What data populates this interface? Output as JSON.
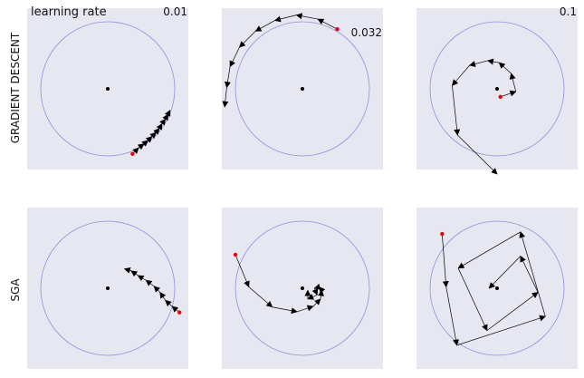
{
  "header": {
    "title": "learning rate"
  },
  "learning_rates": [
    "0.01",
    "0.032",
    "0.1"
  ],
  "row_labels": [
    "GRADIENT DESCENT",
    "SGA"
  ],
  "colors": {
    "panel_bg": "#e7e7f1",
    "circle": "#8f8fe0",
    "arrow": "#000000",
    "start_point": "#e8000b",
    "center": "#000000"
  },
  "panels": [
    {
      "id": "gd-0.01",
      "row": "GRADIENT DESCENT",
      "learning_rate": "0.01",
      "points": [
        [
          0.37,
          -0.97
        ],
        [
          0.46,
          -0.88
        ],
        [
          0.54,
          -0.82
        ],
        [
          0.6,
          -0.77
        ],
        [
          0.66,
          -0.71
        ],
        [
          0.72,
          -0.65
        ],
        [
          0.77,
          -0.59
        ],
        [
          0.81,
          -0.52
        ],
        [
          0.86,
          -0.45
        ],
        [
          0.9,
          -0.38
        ],
        [
          0.93,
          -0.32
        ]
      ]
    },
    {
      "id": "gd-0.032",
      "row": "GRADIENT DESCENT",
      "learning_rate": "0.032",
      "points": [
        [
          0.52,
          0.89
        ],
        [
          0.23,
          1.04
        ],
        [
          -0.09,
          1.1
        ],
        [
          -0.41,
          1.02
        ],
        [
          -0.7,
          0.86
        ],
        [
          -0.94,
          0.62
        ],
        [
          -1.08,
          0.33
        ],
        [
          -1.13,
          0.02
        ],
        [
          -1.16,
          -0.27
        ]
      ]
    },
    {
      "id": "gd-0.1",
      "row": "GRADIENT DESCENT",
      "learning_rate": "0.1",
      "points": [
        [
          0.05,
          -0.12
        ],
        [
          0.28,
          -0.04
        ],
        [
          0.21,
          0.23
        ],
        [
          0.03,
          0.39
        ],
        [
          -0.14,
          0.42
        ],
        [
          -0.41,
          0.35
        ],
        [
          -0.67,
          0.05
        ],
        [
          -0.59,
          -0.69
        ],
        [
          0.0,
          -1.27
        ]
      ]
    },
    {
      "id": "sga-0.01",
      "row": "SGA",
      "learning_rate": "0.01",
      "points": [
        [
          1.07,
          -0.36
        ],
        [
          0.96,
          -0.27
        ],
        [
          0.86,
          -0.18
        ],
        [
          0.78,
          -0.06
        ],
        [
          0.69,
          0.03
        ],
        [
          0.57,
          0.12
        ],
        [
          0.45,
          0.19
        ],
        [
          0.35,
          0.26
        ],
        [
          0.25,
          0.29
        ]
      ]
    },
    {
      "id": "sga-0.032",
      "row": "SGA",
      "learning_rate": "0.032",
      "points": [
        [
          -1.0,
          0.5
        ],
        [
          -0.8,
          0.02
        ],
        [
          -0.45,
          -0.28
        ],
        [
          -0.08,
          -0.35
        ],
        [
          0.16,
          -0.27
        ],
        [
          0.27,
          -0.16
        ],
        [
          0.29,
          -0.03
        ],
        [
          0.25,
          0.02
        ],
        [
          0.18,
          0.0
        ],
        [
          0.22,
          -0.1
        ],
        [
          0.08,
          -0.16
        ],
        [
          0.08,
          -0.03
        ]
      ]
    },
    {
      "id": "sga-0.1",
      "row": "SGA",
      "learning_rate": "0.1",
      "points": [
        [
          -0.82,
          0.81
        ],
        [
          -0.76,
          0.02
        ],
        [
          -0.6,
          -0.85
        ],
        [
          0.72,
          -0.42
        ],
        [
          0.35,
          0.84
        ],
        [
          -0.58,
          0.3
        ],
        [
          -0.15,
          -0.63
        ],
        [
          0.61,
          -0.06
        ],
        [
          0.35,
          0.48
        ],
        [
          -0.12,
          0.0
        ]
      ]
    }
  ]
}
